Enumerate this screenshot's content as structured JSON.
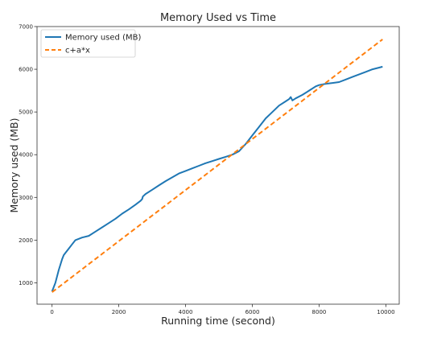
{
  "chart_data": {
    "type": "line",
    "title": "Memory Used vs Time",
    "xlabel": "Running time (second)",
    "ylabel": "Memory used (MB)",
    "xlim": [
      -450,
      10400
    ],
    "ylim": [
      500,
      7000
    ],
    "xticks": [
      0,
      2000,
      4000,
      6000,
      8000,
      10000
    ],
    "yticks": [
      1000,
      2000,
      3000,
      4000,
      5000,
      6000,
      7000
    ],
    "grid": false,
    "legend_position": "top-left",
    "series": [
      {
        "name": "Memory used (MB)",
        "color": "#1f77b4",
        "style": "solid",
        "x": [
          0,
          100,
          200,
          300,
          350,
          400,
          500,
          600,
          700,
          900,
          1100,
          1300,
          1500,
          1700,
          1900,
          2100,
          2300,
          2500,
          2650,
          2700,
          2720,
          2800,
          3000,
          3200,
          3400,
          3600,
          3800,
          4000,
          4200,
          4400,
          4600,
          4800,
          5000,
          5200,
          5400,
          5600,
          5800,
          6000,
          6200,
          6400,
          6600,
          6800,
          7000,
          7100,
          7150,
          7200,
          7300,
          7500,
          7700,
          7900,
          8000,
          8200,
          8400,
          8600,
          8800,
          9000,
          9200,
          9400,
          9600,
          9800,
          9900
        ],
        "y": [
          800,
          1000,
          1300,
          1550,
          1650,
          1700,
          1800,
          1900,
          2000,
          2060,
          2100,
          2200,
          2300,
          2400,
          2500,
          2620,
          2720,
          2830,
          2920,
          2960,
          3020,
          3080,
          3180,
          3280,
          3380,
          3470,
          3560,
          3620,
          3680,
          3740,
          3800,
          3850,
          3900,
          3950,
          4000,
          4080,
          4250,
          4450,
          4650,
          4850,
          5000,
          5150,
          5250,
          5300,
          5350,
          5270,
          5320,
          5400,
          5500,
          5600,
          5630,
          5660,
          5680,
          5700,
          5760,
          5820,
          5880,
          5940,
          6000,
          6040,
          6060
        ]
      },
      {
        "name": "c+a*x",
        "color": "#ff7f0e",
        "style": "dashed",
        "x": [
          0,
          9900
        ],
        "y": [
          780,
          6700
        ]
      }
    ]
  }
}
